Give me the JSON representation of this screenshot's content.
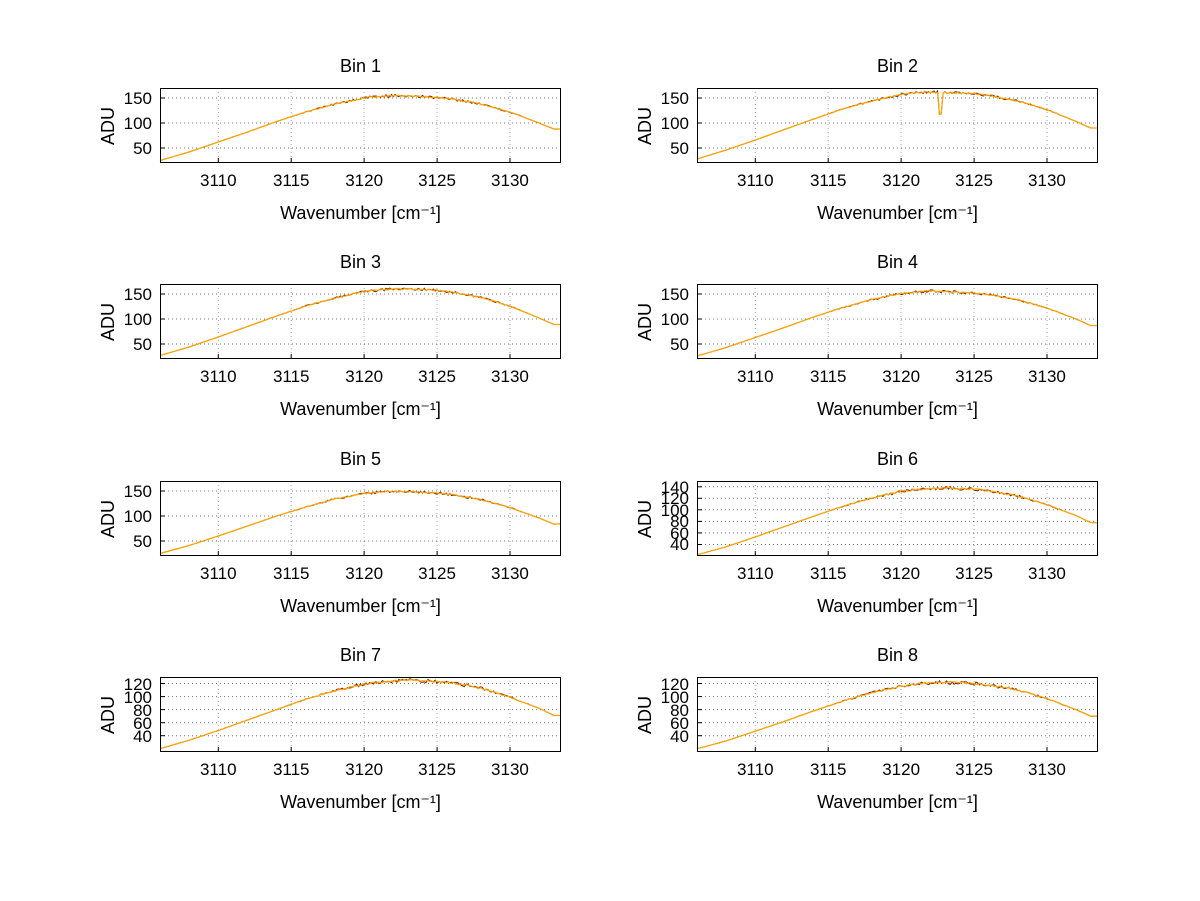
{
  "figure": {
    "background": "#ffffff",
    "grid": true,
    "grid_style": "dotted",
    "axes_color": "#000000",
    "line_color": "#ffa500",
    "noise_color": "#7a2000"
  },
  "chart_data": [
    {
      "type": "line",
      "title": "Bin 1",
      "xlabel": "Wavenumber [cm⁻¹]",
      "ylabel": "ADU",
      "xlim": [
        3106,
        3133.5
      ],
      "ylim": [
        20,
        170
      ],
      "xticks": [
        3110,
        3115,
        3120,
        3125,
        3130
      ],
      "yticks": [
        50,
        100,
        150
      ],
      "x": [
        3106,
        3108,
        3110,
        3112,
        3114,
        3116,
        3118,
        3120,
        3121,
        3122,
        3123,
        3124,
        3125,
        3126,
        3128,
        3130,
        3132,
        3133
      ],
      "y": [
        25,
        42,
        62,
        82,
        103,
        122,
        138,
        150,
        153,
        155,
        154,
        153,
        151,
        148,
        138,
        122,
        100,
        88
      ]
    },
    {
      "type": "line",
      "title": "Bin 2",
      "xlabel": "Wavenumber [cm⁻¹]",
      "ylabel": "ADU",
      "xlim": [
        3106,
        3133.5
      ],
      "ylim": [
        20,
        170
      ],
      "xticks": [
        3110,
        3115,
        3120,
        3125,
        3130
      ],
      "yticks": [
        50,
        100,
        150
      ],
      "x": [
        3106,
        3108,
        3110,
        3112,
        3114,
        3116,
        3118,
        3120,
        3121,
        3122,
        3123,
        3124,
        3125,
        3126,
        3128,
        3130,
        3132,
        3133
      ],
      "y": [
        28,
        46,
        66,
        87,
        108,
        128,
        144,
        157,
        160,
        162,
        161,
        160,
        158,
        155,
        144,
        127,
        103,
        90
      ],
      "spike": {
        "x": 3122.7,
        "y": 118
      }
    },
    {
      "type": "line",
      "title": "Bin 3",
      "xlabel": "Wavenumber [cm⁻¹]",
      "ylabel": "ADU",
      "xlim": [
        3106,
        3133.5
      ],
      "ylim": [
        20,
        170
      ],
      "xticks": [
        3110,
        3115,
        3120,
        3125,
        3130
      ],
      "yticks": [
        50,
        100,
        150
      ],
      "x": [
        3106,
        3108,
        3110,
        3112,
        3114,
        3116,
        3118,
        3120,
        3121,
        3122,
        3123,
        3124,
        3125,
        3126,
        3128,
        3130,
        3132,
        3133
      ],
      "y": [
        27,
        44,
        64,
        85,
        106,
        126,
        142,
        155,
        158,
        160,
        160,
        159,
        157,
        154,
        143,
        126,
        102,
        89
      ]
    },
    {
      "type": "line",
      "title": "Bin 4",
      "xlabel": "Wavenumber [cm⁻¹]",
      "ylabel": "ADU",
      "xlim": [
        3106,
        3133.5
      ],
      "ylim": [
        20,
        170
      ],
      "xticks": [
        3110,
        3115,
        3120,
        3125,
        3130
      ],
      "yticks": [
        50,
        100,
        150
      ],
      "x": [
        3106,
        3108,
        3110,
        3112,
        3114,
        3116,
        3118,
        3120,
        3121,
        3122,
        3123,
        3124,
        3125,
        3126,
        3128,
        3130,
        3132,
        3133
      ],
      "y": [
        26,
        43,
        63,
        83,
        104,
        123,
        139,
        151,
        154,
        156,
        155,
        154,
        152,
        149,
        139,
        122,
        100,
        87
      ]
    },
    {
      "type": "line",
      "title": "Bin 5",
      "xlabel": "Wavenumber [cm⁻¹]",
      "ylabel": "ADU",
      "xlim": [
        3106,
        3133.5
      ],
      "ylim": [
        20,
        170
      ],
      "xticks": [
        3110,
        3115,
        3120,
        3125,
        3130
      ],
      "yticks": [
        50,
        100,
        150
      ],
      "x": [
        3106,
        3108,
        3110,
        3112,
        3114,
        3116,
        3118,
        3120,
        3121,
        3122,
        3123,
        3124,
        3125,
        3126,
        3128,
        3130,
        3132,
        3133
      ],
      "y": [
        25,
        41,
        60,
        80,
        100,
        118,
        134,
        145,
        148,
        149,
        149,
        148,
        146,
        143,
        133,
        117,
        96,
        84
      ]
    },
    {
      "type": "line",
      "title": "Bin 6",
      "xlabel": "Wavenumber [cm⁻¹]",
      "ylabel": "ADU",
      "xlim": [
        3106,
        3133.5
      ],
      "ylim": [
        20,
        150
      ],
      "xticks": [
        3110,
        3115,
        3120,
        3125,
        3130
      ],
      "yticks": [
        40,
        60,
        80,
        100,
        120,
        140
      ],
      "x": [
        3106,
        3108,
        3110,
        3112,
        3114,
        3116,
        3118,
        3120,
        3121,
        3122,
        3123,
        3124,
        3125,
        3126,
        3128,
        3130,
        3132,
        3133
      ],
      "y": [
        22,
        36,
        53,
        71,
        89,
        106,
        121,
        132,
        135,
        137,
        138,
        137,
        136,
        133,
        124,
        109,
        90,
        78
      ]
    },
    {
      "type": "line",
      "title": "Bin 7",
      "xlabel": "Wavenumber [cm⁻¹]",
      "ylabel": "ADU",
      "xlim": [
        3106,
        3133.5
      ],
      "ylim": [
        15,
        130
      ],
      "xticks": [
        3110,
        3115,
        3120,
        3125,
        3130
      ],
      "yticks": [
        40,
        60,
        80,
        100,
        120
      ],
      "x": [
        3106,
        3108,
        3110,
        3112,
        3114,
        3116,
        3118,
        3120,
        3121,
        3122,
        3123,
        3124,
        3125,
        3126,
        3128,
        3130,
        3132,
        3133
      ],
      "y": [
        20,
        33,
        48,
        64,
        80,
        96,
        109,
        119,
        122,
        124,
        125,
        124,
        123,
        121,
        113,
        99,
        82,
        71
      ]
    },
    {
      "type": "line",
      "title": "Bin 8",
      "xlabel": "Wavenumber [cm⁻¹]",
      "ylabel": "ADU",
      "xlim": [
        3106,
        3133.5
      ],
      "ylim": [
        15,
        130
      ],
      "xticks": [
        3110,
        3115,
        3120,
        3125,
        3130
      ],
      "yticks": [
        40,
        60,
        80,
        100,
        120
      ],
      "x": [
        3106,
        3108,
        3110,
        3112,
        3114,
        3116,
        3118,
        3120,
        3121,
        3122,
        3123,
        3124,
        3125,
        3126,
        3128,
        3130,
        3132,
        3133
      ],
      "y": [
        20,
        32,
        47,
        62,
        78,
        93,
        106,
        116,
        119,
        121,
        122,
        121,
        120,
        118,
        110,
        97,
        80,
        70
      ]
    }
  ]
}
